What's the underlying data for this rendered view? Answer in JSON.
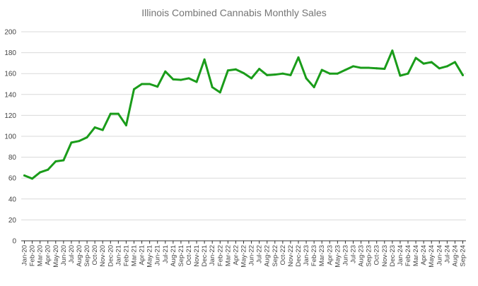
{
  "chart_data": {
    "type": "line",
    "title": "Illinois Combined Cannabis Monthly Sales",
    "xlabel": "",
    "ylabel": "",
    "ylim": [
      0,
      200
    ],
    "yticks": [
      0,
      20,
      40,
      60,
      80,
      100,
      120,
      140,
      160,
      180,
      200
    ],
    "grid": true,
    "legend": "none",
    "categories": [
      "Jan-20",
      "Feb-20",
      "Mar-20",
      "Apr-20",
      "May-20",
      "Jun-20",
      "Jul-20",
      "Aug-20",
      "Sep-20",
      "Oct-20",
      "Nov-20",
      "Dec-20",
      "Jan-21",
      "Feb-21",
      "Mar-21",
      "Apr-21",
      "May-21",
      "Jun-21",
      "Jul-21",
      "Aug-21",
      "Sep-21",
      "Oct-21",
      "Nov-21",
      "Dec-21",
      "Jan-22",
      "Feb-22",
      "Mar-22",
      "Apr-22",
      "May-22",
      "Jun-22",
      "Jul-22",
      "Aug-22",
      "Sep-22",
      "Oct-22",
      "Nov-22",
      "Dec-22",
      "Jan-23",
      "Feb-23",
      "Mar-23",
      "Apr-23",
      "May-23",
      "Jun-23",
      "Jul-23",
      "Aug-23",
      "Sep-23",
      "Oct-23",
      "Nov-23",
      "Dec-23",
      "Jan-24",
      "Feb-24",
      "Mar-24",
      "Apr-24",
      "May-24",
      "Jun-24",
      "Jul-24",
      "Aug-24",
      "Sep-24"
    ],
    "series": [
      {
        "color": "#1a9c1a",
        "values": [
          62.5,
          59.5,
          65.5,
          68,
          76,
          77,
          94,
          95.5,
          99,
          108.5,
          106,
          121.5,
          121.5,
          110.5,
          145,
          150,
          150,
          147.5,
          162,
          154.5,
          154,
          155.5,
          152,
          173.5,
          147,
          142,
          163,
          164,
          160.5,
          155.5,
          164.5,
          158.5,
          159,
          160,
          158.5,
          175.5,
          155.5,
          147,
          163.5,
          160,
          160,
          163.5,
          167,
          165.5,
          165.5,
          165,
          164.5,
          182,
          158,
          160,
          175,
          169.5,
          171,
          165,
          167,
          171,
          158.5
        ]
      }
    ]
  }
}
